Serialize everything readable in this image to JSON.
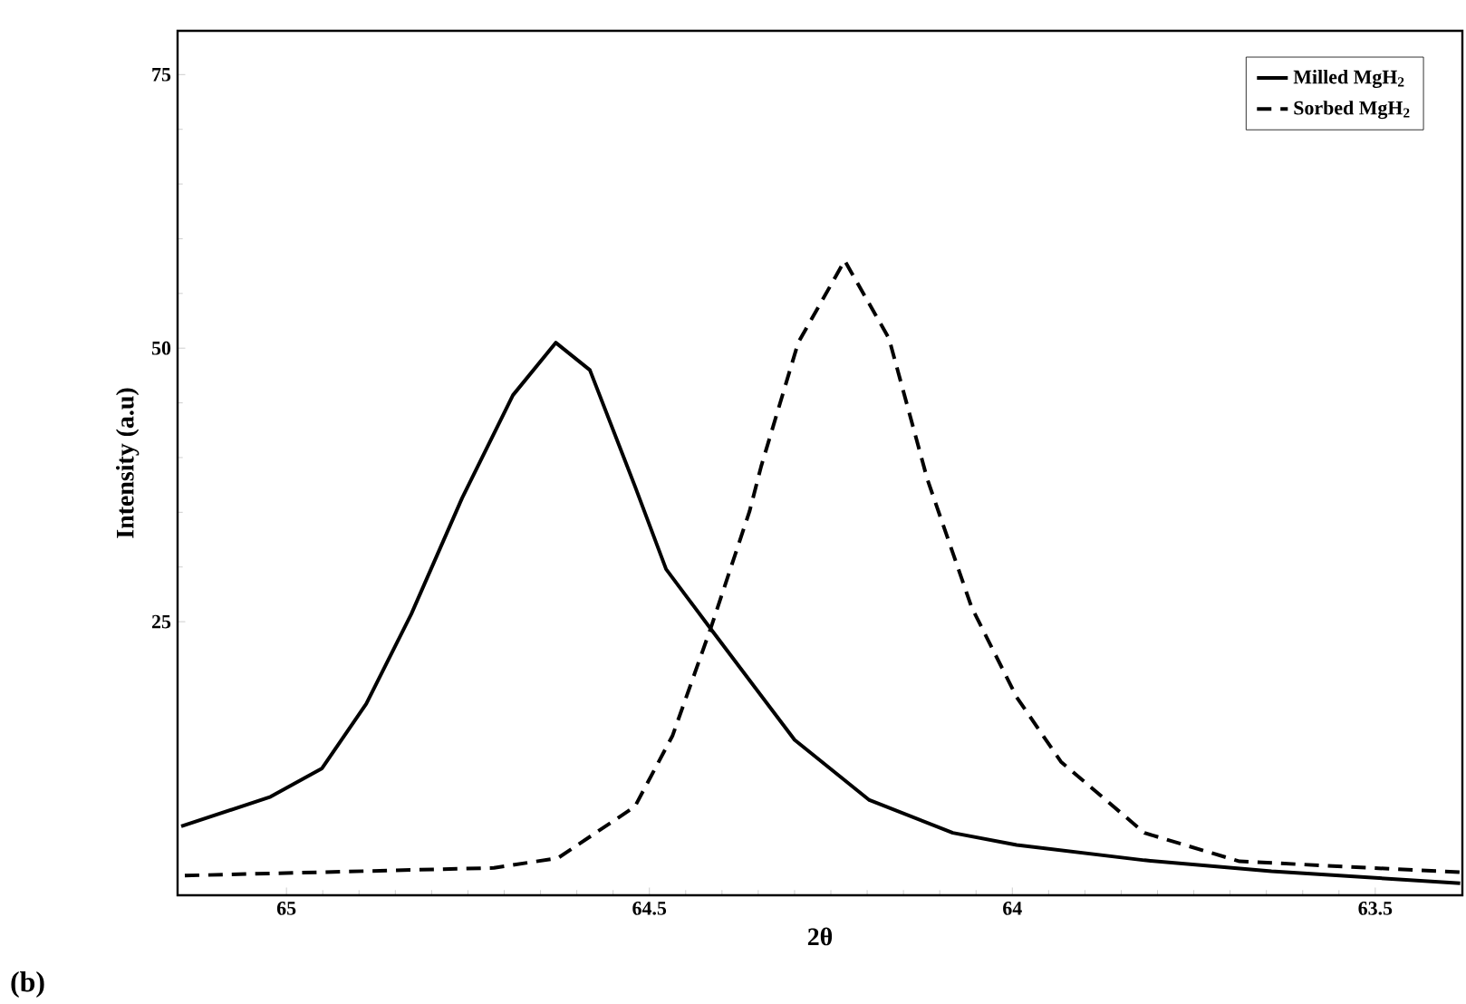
{
  "chart_data": {
    "type": "line",
    "xlabel": "2θ",
    "ylabel": "Intensity (a.u)",
    "xlim": [
      65.15,
      63.38
    ],
    "ylim": [
      0,
      79
    ],
    "xticks": [
      65,
      64.5,
      64,
      63.5
    ],
    "yticks": [
      25,
      50,
      75
    ],
    "legend": "top right",
    "grid": false,
    "marker": "none",
    "annotations": [
      "(b)"
    ],
    "series": [
      {
        "name": "Milled MgH$_{2}$",
        "color": "#000000",
        "line_style": "solid",
        "x": [
          65.145,
          65.022,
          64.951,
          64.89,
          64.828,
          64.758,
          64.688,
          64.629,
          64.582,
          64.52,
          64.477,
          64.415,
          64.3,
          64.197,
          64.082,
          63.994,
          63.818,
          63.643,
          63.383
        ],
        "values": [
          6.3,
          9.0,
          11.6,
          17.5,
          25.7,
          36.3,
          45.7,
          50.5,
          48.0,
          37.4,
          29.8,
          24.3,
          14.2,
          8.7,
          5.7,
          4.6,
          3.2,
          2.2,
          1.1
        ]
      },
      {
        "name": "Sorbed MgH$_{2}$",
        "color": "#000000",
        "line_style": "dashed",
        "x": [
          65.14,
          64.714,
          64.626,
          64.52,
          64.468,
          64.415,
          64.362,
          64.346,
          64.295,
          64.231,
          64.17,
          64.117,
          64.056,
          63.994,
          63.933,
          63.818,
          63.687,
          63.383
        ],
        "values": [
          1.8,
          2.5,
          3.4,
          8.1,
          14.6,
          24.5,
          35.1,
          39.2,
          50.5,
          58.0,
          50.9,
          38.0,
          26.3,
          18.1,
          12.2,
          5.7,
          3.1,
          2.1
        ]
      }
    ]
  }
}
